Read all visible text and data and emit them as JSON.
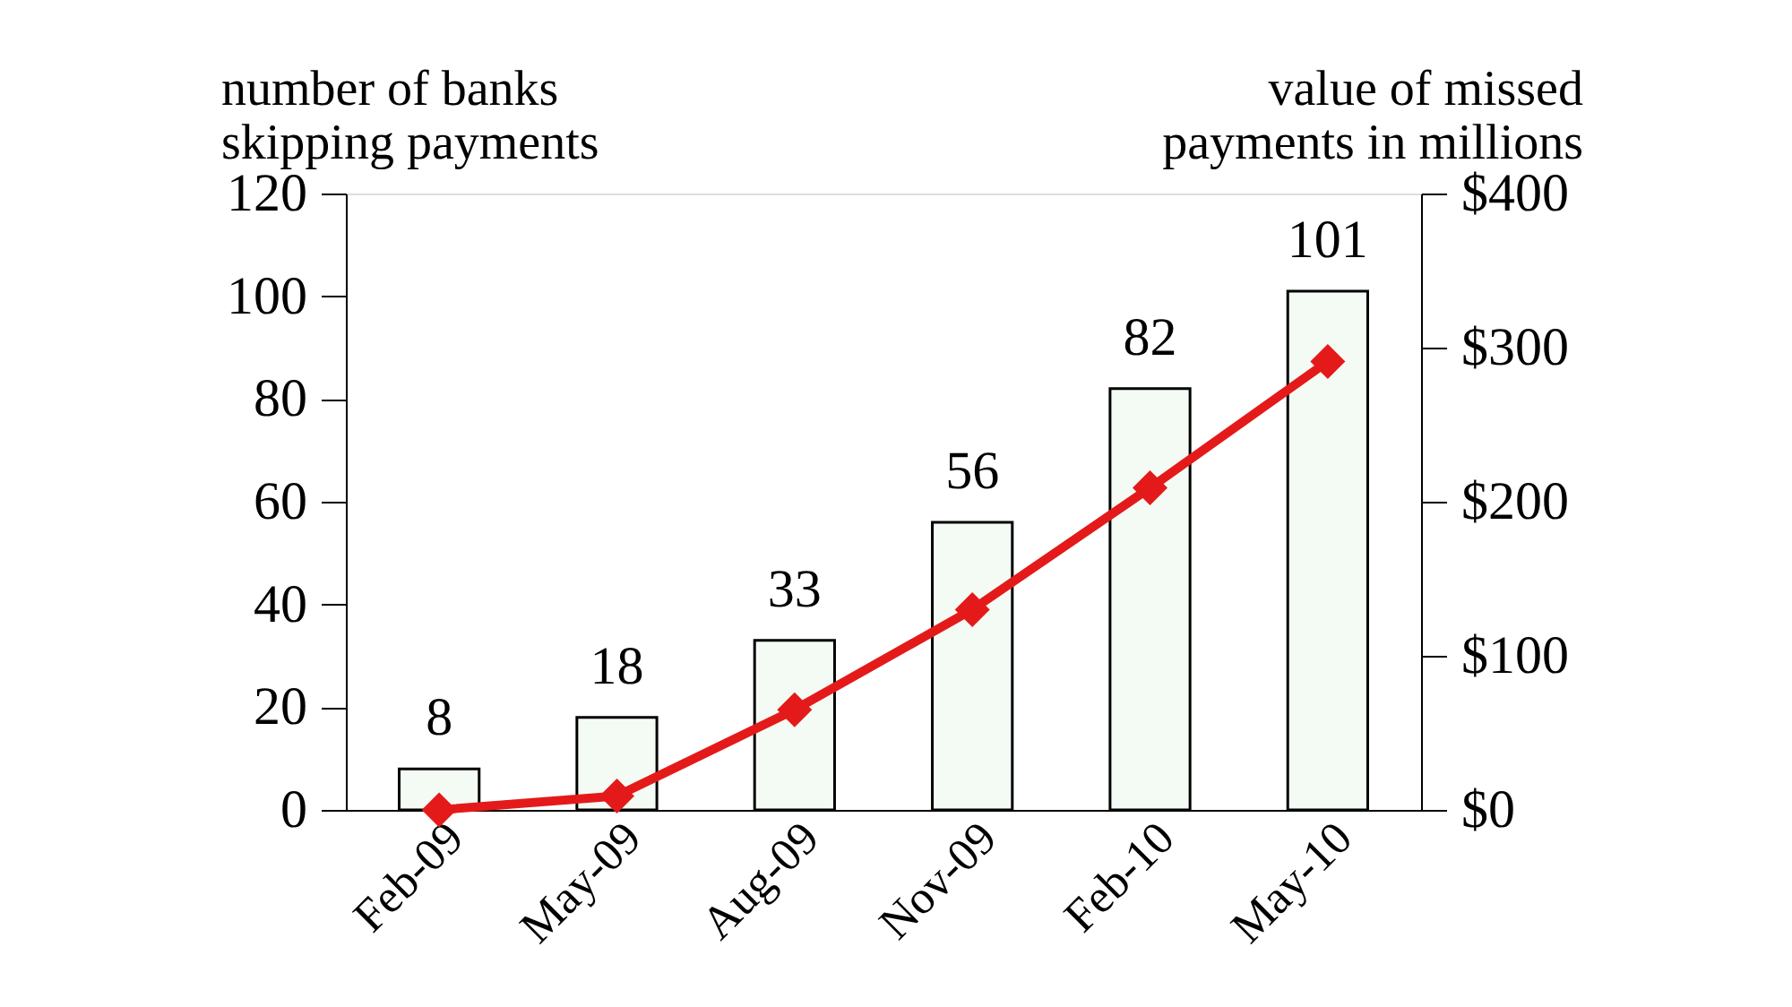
{
  "chart_data": {
    "type": "bar",
    "ylabel": "number of banks skipping payments",
    "y2label": "value of missed payments in millions",
    "categories": [
      "Feb-09",
      "May-09",
      "Aug-09",
      "Nov-09",
      "Feb-10",
      "May-10"
    ],
    "series": [
      {
        "color": "#f4faf4",
        "values": [
          8,
          18,
          33,
          56,
          82,
          101
        ],
        "value_labels": [
          "8",
          "18",
          "33",
          "56",
          "82",
          "101"
        ]
      },
      {
        "type": "line",
        "axis": "y2",
        "color": "#e41a1a",
        "marker": "diamond",
        "values": [
          0,
          9,
          65,
          130,
          209,
          291
        ]
      }
    ],
    "ylim": [
      0,
      120
    ],
    "yticks": [
      0,
      20,
      40,
      60,
      80,
      100,
      120
    ],
    "y2lim": [
      0,
      400
    ],
    "y2ticks": [
      {
        "value": 0,
        "label": "$0"
      },
      {
        "value": 100,
        "label": "$100"
      },
      {
        "value": 200,
        "label": "$200"
      },
      {
        "value": 300,
        "label": "$300"
      },
      {
        "value": 400,
        "label": "$400"
      }
    ],
    "grid": false
  }
}
